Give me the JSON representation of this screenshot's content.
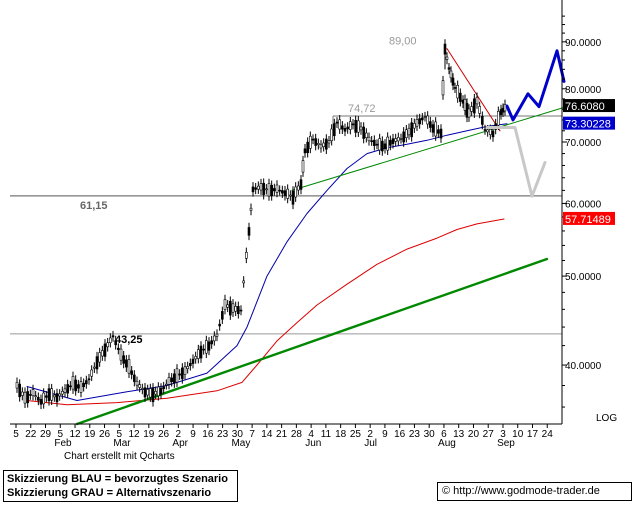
{
  "chart_data": {
    "type": "candlestick",
    "title": "",
    "y_scale": "log",
    "ylim": [
      34.5,
      97
    ],
    "x_axis": {
      "tick_labels": [
        "5",
        "22",
        "29",
        "5",
        "12",
        "19",
        "26",
        "5",
        "12",
        "19",
        "26",
        "2",
        "9",
        "16",
        "23",
        "30",
        "7",
        "14",
        "21",
        "28",
        "4",
        "11",
        "18",
        "25",
        "2",
        "9",
        "16",
        "23",
        "30",
        "6",
        "13",
        "20",
        "27",
        "3",
        "10",
        "17",
        "24"
      ],
      "month_labels": [
        "Feb",
        "Mar",
        "Apr",
        "May",
        "Jun",
        "Jul",
        "Aug",
        "Sep"
      ]
    },
    "y_axis": {
      "tick_labels": [
        "90.0000",
        "80.0000",
        "70.0000",
        "60.0000",
        "50.0000",
        "40.0000"
      ],
      "tick_values": [
        90,
        80,
        70,
        60,
        50,
        40
      ],
      "scale_label": "LOG"
    },
    "value_tags": [
      {
        "label": "76.6080",
        "value": 76.608,
        "color": "#000000"
      },
      {
        "label": "73.30228",
        "value": 73.30228,
        "color": "#0000cc"
      },
      {
        "label": "57.71489",
        "value": 57.71489,
        "color": "#ff0000"
      }
    ],
    "horizontal_levels": [
      {
        "value": 89.0,
        "label": "89,00",
        "color": "#9a9a9a"
      },
      {
        "value": 74.72,
        "label": "74,72",
        "color": "#9a9a9a"
      },
      {
        "value": 61.15,
        "label": "61,15",
        "color": "#808080"
      },
      {
        "value": 43.25,
        "label": "43,25",
        "color": "#000000"
      }
    ],
    "price_points": [
      [
        0,
        38.0
      ],
      [
        8,
        36.8
      ],
      [
        16,
        37.3
      ],
      [
        24,
        36.5
      ],
      [
        32,
        37.2
      ],
      [
        40,
        36.9
      ],
      [
        48,
        37.5
      ],
      [
        56,
        38.2
      ],
      [
        64,
        37.8
      ],
      [
        72,
        38.6
      ],
      [
        80,
        40.3
      ],
      [
        88,
        41.6
      ],
      [
        96,
        43.0
      ],
      [
        104,
        41.0
      ],
      [
        112,
        39.8
      ],
      [
        120,
        38.2
      ],
      [
        128,
        37.4
      ],
      [
        136,
        37.2
      ],
      [
        144,
        37.5
      ],
      [
        152,
        38.4
      ],
      [
        160,
        38.9
      ],
      [
        168,
        39.4
      ],
      [
        176,
        40.4
      ],
      [
        184,
        41.4
      ],
      [
        192,
        42.0
      ],
      [
        200,
        43.1
      ],
      [
        208,
        46.5
      ],
      [
        216,
        46.1
      ],
      [
        224,
        45.9
      ],
      [
        232,
        56.0
      ],
      [
        236,
        62.2
      ],
      [
        244,
        62.5
      ],
      [
        252,
        62.0
      ],
      [
        260,
        62.2
      ],
      [
        268,
        61.6
      ],
      [
        276,
        61.0
      ],
      [
        284,
        63.0
      ],
      [
        288,
        68.5
      ],
      [
        296,
        70.5
      ],
      [
        304,
        69.2
      ],
      [
        312,
        70.0
      ],
      [
        320,
        73.5
      ],
      [
        328,
        72.2
      ],
      [
        336,
        73.2
      ],
      [
        344,
        72.4
      ],
      [
        352,
        70.5
      ],
      [
        360,
        69.6
      ],
      [
        368,
        69.3
      ],
      [
        376,
        70.2
      ],
      [
        384,
        70.6
      ],
      [
        392,
        71.8
      ],
      [
        400,
        73.4
      ],
      [
        408,
        74.6
      ],
      [
        416,
        72.5
      ],
      [
        424,
        71.6
      ],
      [
        428,
        88.5
      ],
      [
        432,
        84.2
      ],
      [
        438,
        80.2
      ],
      [
        446,
        77.5
      ],
      [
        452,
        75.2
      ],
      [
        460,
        77.6
      ],
      [
        468,
        72.2
      ],
      [
        476,
        71.5
      ],
      [
        484,
        75.5
      ],
      [
        490,
        76.6
      ]
    ],
    "series": [
      {
        "name": "",
        "type": "sma-blue",
        "color": "#0000aa",
        "points": [
          [
            10,
            37.9
          ],
          [
            60,
            36.6
          ],
          [
            110,
            37.4
          ],
          [
            150,
            38.0
          ],
          [
            190,
            39.2
          ],
          [
            220,
            42.0
          ],
          [
            230,
            44.0
          ],
          [
            250,
            50.0
          ],
          [
            270,
            54.5
          ],
          [
            290,
            58.5
          ],
          [
            310,
            62.0
          ],
          [
            330,
            65.5
          ],
          [
            350,
            68.0
          ],
          [
            370,
            69.0
          ],
          [
            390,
            69.6
          ],
          [
            410,
            70.3
          ],
          [
            430,
            71.2
          ],
          [
            450,
            72.0
          ],
          [
            470,
            72.8
          ],
          [
            490,
            73.3
          ]
        ]
      },
      {
        "name": "",
        "type": "sma-red",
        "color": "#dd0000",
        "points": [
          [
            10,
            36.6
          ],
          [
            50,
            36.2
          ],
          [
            100,
            36.4
          ],
          [
            150,
            36.8
          ],
          [
            200,
            37.5
          ],
          [
            225,
            38.3
          ],
          [
            240,
            40.0
          ],
          [
            260,
            42.5
          ],
          [
            280,
            44.5
          ],
          [
            300,
            46.5
          ],
          [
            330,
            49.0
          ],
          [
            360,
            51.5
          ],
          [
            390,
            53.5
          ],
          [
            420,
            55.0
          ],
          [
            440,
            56.2
          ],
          [
            460,
            57.0
          ],
          [
            487,
            57.7
          ]
        ]
      },
      {
        "name": "",
        "type": "trendline-thick-green",
        "color": "#008800",
        "points": [
          [
            60,
            34.5
          ],
          [
            530,
            52.2
          ]
        ]
      },
      {
        "name": "",
        "type": "trendline-thin-green",
        "color": "#008800",
        "points": [
          [
            275,
            62.0
          ],
          [
            548,
            76.4
          ]
        ]
      },
      {
        "name": "",
        "type": "downtrend-red",
        "color": "#cc0000",
        "points": [
          [
            430,
            88.5
          ],
          [
            483,
            72.0
          ]
        ]
      },
      {
        "name": "",
        "type": "scenario-blue",
        "color": "#0000cc",
        "points": [
          [
            490,
            76.6
          ],
          [
            496,
            74.0
          ],
          [
            511,
            79.0
          ],
          [
            522,
            76.5
          ],
          [
            540,
            88.0
          ],
          [
            547,
            81.5
          ]
        ]
      },
      {
        "name": "",
        "type": "scenario-gray",
        "color": "#c8c8c8",
        "points": [
          [
            470,
            72.6
          ],
          [
            498,
            72.6
          ],
          [
            515,
            61.1
          ],
          [
            528,
            66.5
          ]
        ]
      }
    ]
  },
  "footer": {
    "credit": "Chart erstellt mit Qcharts",
    "legend_line1": "Skizzierung BLAU = bevorzugtes Szenario",
    "legend_line2": "Skizzierung GRAU = Alternativszenario",
    "source_symbol": "©",
    "source_url": "http://www.godmode-trader.de"
  }
}
